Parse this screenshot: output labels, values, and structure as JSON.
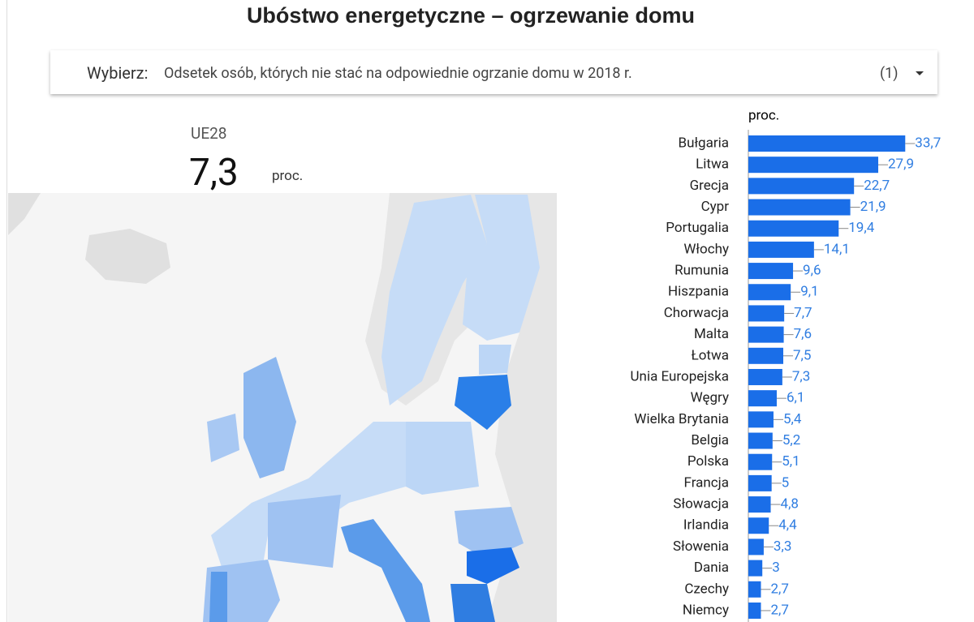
{
  "title": "Ubóstwo energetyczne – ogrzewanie domu",
  "dropdown": {
    "label": "Wybierz:",
    "selected": "Odsetek osób, których nie stać na odpowiednie ogrzanie domu w 2018 r.",
    "count": "(1)"
  },
  "kpi": {
    "label": "UE28",
    "value": "7,3",
    "unit": "proc."
  },
  "chart_data": {
    "type": "hbar",
    "value_axis_label": "proc.",
    "color": "#1a6ee8",
    "label_color": "#2f7de1",
    "categories": [
      "Bułgaria",
      "Litwa",
      "Grecja",
      "Cypr",
      "Portugalia",
      "Włochy",
      "Rumunia",
      "Hiszpania",
      "Chorwacja",
      "Malta",
      "Łotwa",
      "Unia Europejska",
      "Węgry",
      "Wielka Brytania",
      "Belgia",
      "Polska",
      "Francja",
      "Słowacja",
      "Irlandia",
      "Słowenia",
      "Dania",
      "Czechy",
      "Niemcy"
    ],
    "values": [
      33.7,
      27.9,
      22.7,
      21.9,
      19.4,
      14.1,
      9.6,
      9.1,
      7.7,
      7.6,
      7.5,
      7.3,
      6.1,
      5.4,
      5.2,
      5.1,
      5,
      4.8,
      4.4,
      3.3,
      3,
      2.7,
      2.7
    ],
    "value_labels": [
      "33,7",
      "27,9",
      "22,7",
      "21,9",
      "19,4",
      "14,1",
      "9,6",
      "9,1",
      "7,7",
      "7,6",
      "7,5",
      "7,3",
      "6,1",
      "5,4",
      "5,2",
      "5,1",
      "5",
      "4,8",
      "4,4",
      "3,3",
      "3",
      "2,7",
      "2,7"
    ],
    "xlim": [
      0,
      47.6
    ]
  }
}
